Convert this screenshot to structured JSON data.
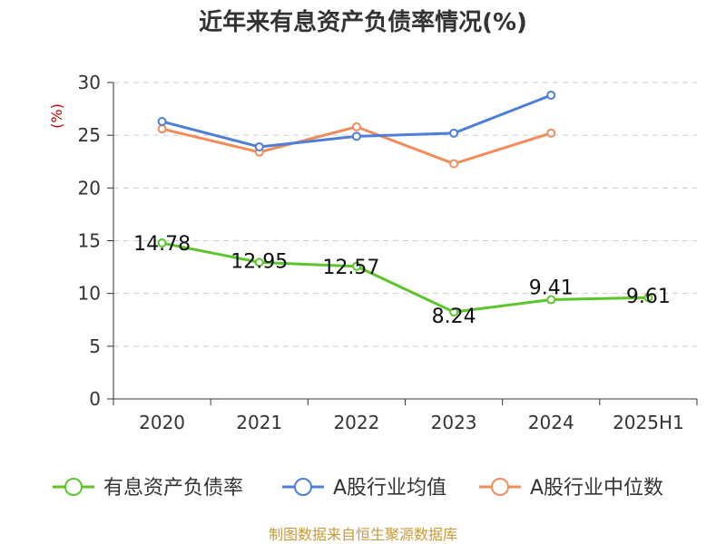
{
  "title": "近年来有息资产负债率情况(%)",
  "source": "制图数据来自恒生聚源数据库",
  "colors": {
    "interest_debt_ratio": "#5cc52a",
    "industry_avg": "#4d7fd8",
    "industry_median": "#f28c5a",
    "unit_label": "#cc0000"
  },
  "chart_data": {
    "type": "line",
    "title": "近年来有息资产负债率情况(%)",
    "ylabel": "(%)",
    "categories": [
      "2020",
      "2021",
      "2022",
      "2023",
      "2024",
      "2025H1"
    ],
    "ylim": [
      0,
      30
    ],
    "yticks": [
      0,
      5,
      10,
      15,
      20,
      25,
      30
    ],
    "grid": true,
    "legend_position": "bottom",
    "series": [
      {
        "name": "有息资产负债率",
        "values": [
          14.78,
          12.95,
          12.57,
          8.24,
          9.41,
          9.61
        ],
        "labels": [
          "14.78",
          "12.95",
          "12.57",
          "8.24",
          "9.41",
          "9.61"
        ],
        "color": "#5cc52a"
      },
      {
        "name": "A股行业均值",
        "values": [
          26.3,
          23.9,
          24.9,
          25.2,
          28.8,
          null
        ],
        "color": "#4d7fd8"
      },
      {
        "name": "A股行业中位数",
        "values": [
          25.6,
          23.4,
          25.8,
          22.3,
          25.2,
          null
        ],
        "color": "#f28c5a"
      }
    ]
  }
}
